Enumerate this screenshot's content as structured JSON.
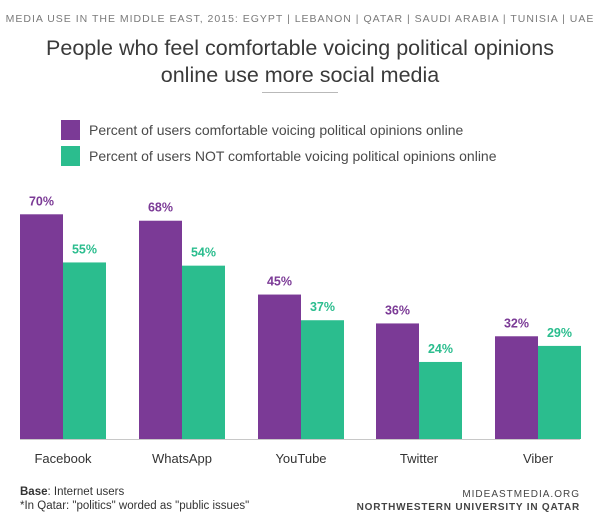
{
  "supertitle": "MEDIA USE IN THE MIDDLE EAST, 2015: EGYPT | LEBANON | QATAR | SAUDI ARABIA | TUNISIA | UAE",
  "title_line1": "People who feel comfortable voicing political opinions",
  "title_line2": "online use more social media",
  "footer": {
    "base_label": "Base",
    "base_text": ": Internet users",
    "note": "*In Qatar: \"politics\" worded as \"public issues\"",
    "source1": "MIDEASTMEDIA.ORG",
    "source2": "NORTHWESTERN UNIVERSITY IN QATAR"
  },
  "chart_data": {
    "type": "bar",
    "title": "People who feel comfortable voicing political opinions online use more social media",
    "categories": [
      "Facebook",
      "WhatsApp",
      "YouTube",
      "Twitter",
      "Viber"
    ],
    "series": [
      {
        "name": "Percent of users comfortable voicing political opinions online",
        "values": [
          70,
          68,
          45,
          36,
          32
        ],
        "labels": [
          "70%",
          "68%",
          "45%",
          "36%",
          "32%"
        ],
        "color": "#7b3a96"
      },
      {
        "name": "Percent of users NOT comfortable voicing political opinions online",
        "values": [
          55,
          54,
          37,
          24,
          29
        ],
        "labels": [
          "55%",
          "54%",
          "37%",
          "24%",
          "29%"
        ],
        "color": "#2bbd8e"
      }
    ],
    "ylim": [
      0,
      100
    ],
    "grid": false,
    "legend": "top-left"
  }
}
